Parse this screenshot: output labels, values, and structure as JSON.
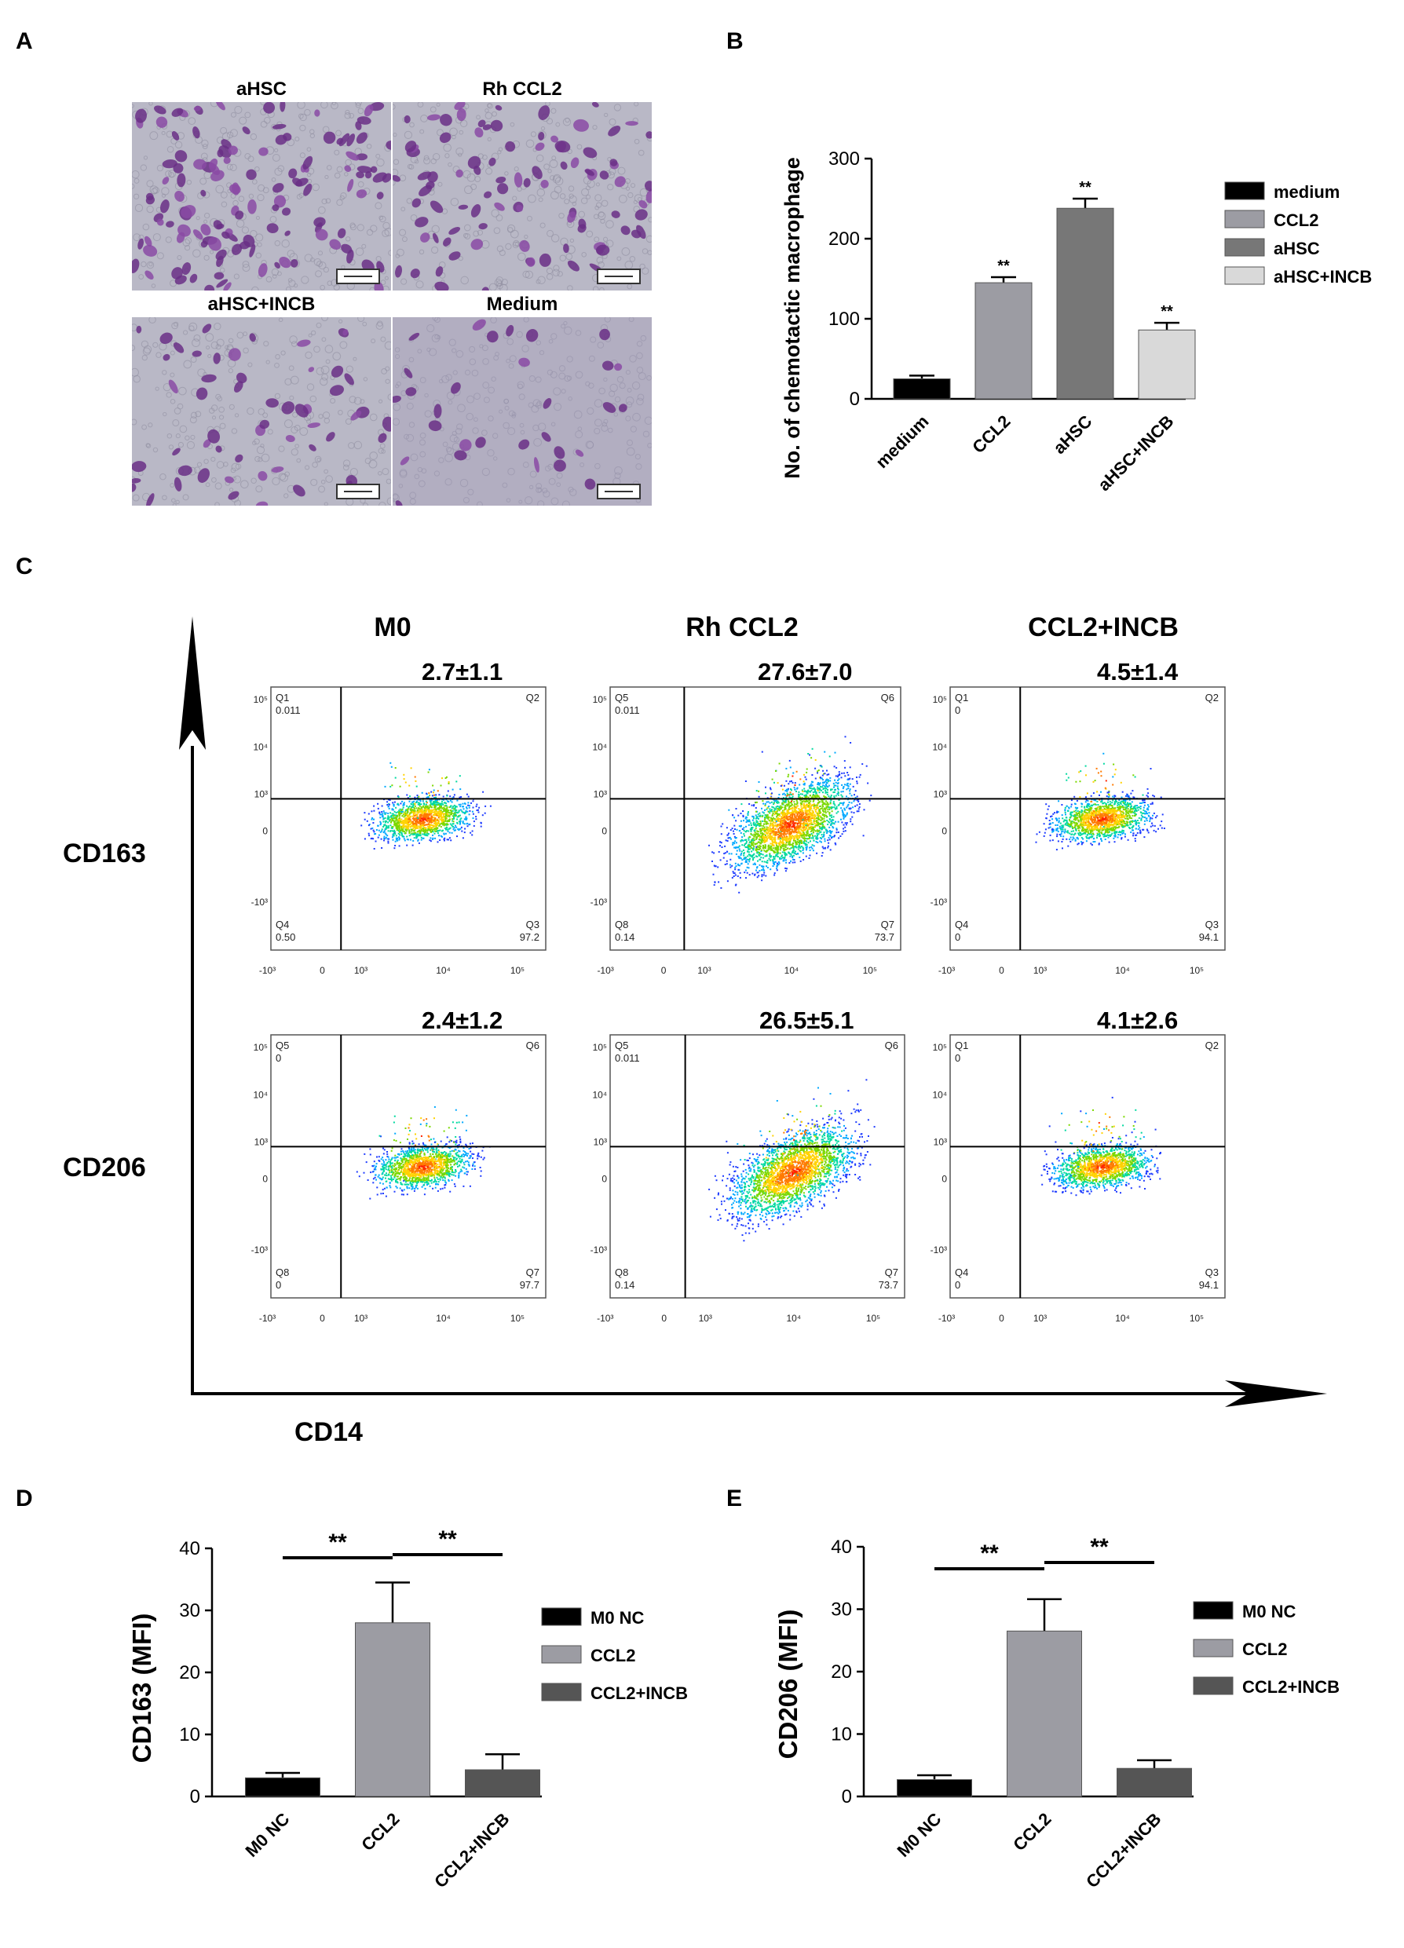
{
  "panel_labels": {
    "a": "A",
    "b": "B",
    "c": "C",
    "d": "D",
    "e": "E"
  },
  "micrographs": {
    "aHSC": "aHSC",
    "rh_ccl2": "Rh CCL2",
    "ahsc_incb": "aHSC+INCB",
    "medium": "Medium"
  },
  "chart_data": [
    {
      "id": "B",
      "type": "bar",
      "categories": [
        "medium",
        "CCL2",
        "aHSC",
        "aHSC+INCB"
      ],
      "values": [
        25,
        145,
        238,
        86
      ],
      "errors": [
        4,
        7,
        12,
        9
      ],
      "significance": [
        "",
        "**",
        "**",
        "**"
      ],
      "colors": [
        "#000000",
        "#9c9ca3",
        "#777777",
        "#d9d9d9"
      ],
      "ylabel": "No. of chemotactic macrophage",
      "ylim": [
        0,
        300
      ],
      "yticks": [
        0,
        100,
        200,
        300
      ],
      "legend": [
        "medium",
        "CCL2",
        "aHSC",
        "aHSC+INCB"
      ],
      "legend_position": "right"
    },
    {
      "id": "D",
      "type": "bar",
      "categories": [
        "M0 NC",
        "CCL2",
        "CCL2+INCB"
      ],
      "values": [
        3,
        28,
        4.3
      ],
      "errors": [
        0.8,
        6.5,
        2.5
      ],
      "colors": [
        "#000000",
        "#9c9ca3",
        "#555555"
      ],
      "ylabel": "CD163 (MFI)",
      "ylim": [
        0,
        40
      ],
      "yticks": [
        0,
        10,
        20,
        30,
        40
      ],
      "significance_brackets": [
        {
          "from": 0,
          "to": 1,
          "label": "**"
        },
        {
          "from": 1,
          "to": 2,
          "label": "**"
        }
      ],
      "legend": [
        "M0 NC",
        "CCL2",
        "CCL2+INCB"
      ],
      "legend_position": "right"
    },
    {
      "id": "E",
      "type": "bar",
      "categories": [
        "M0 NC",
        "CCL2",
        "CCL2+INCB"
      ],
      "values": [
        2.7,
        26.5,
        4.5
      ],
      "errors": [
        0.7,
        5.1,
        1.3
      ],
      "colors": [
        "#000000",
        "#9c9ca3",
        "#555555"
      ],
      "ylabel": "CD206 (MFI)",
      "ylim": [
        0,
        40
      ],
      "yticks": [
        0,
        10,
        20,
        30,
        40
      ],
      "significance_brackets": [
        {
          "from": 0,
          "to": 1,
          "label": "**"
        },
        {
          "from": 1,
          "to": 2,
          "label": "**"
        }
      ],
      "legend": [
        "M0 NC",
        "CCL2",
        "CCL2+INCB"
      ],
      "legend_position": "right"
    }
  ],
  "flow": {
    "column_titles": [
      "M0",
      "Rh CCL2",
      "CCL2+INCB"
    ],
    "row_markers": [
      "CD163",
      "CD206"
    ],
    "x_marker": "CD14",
    "percentages": [
      [
        "2.7±1.1",
        "27.6±7.0",
        "4.5±1.4"
      ],
      [
        "2.4±1.2",
        "26.5±5.1",
        "4.1±2.6"
      ]
    ],
    "plots": [
      [
        {
          "ul": [
            "Q1",
            "0.011"
          ],
          "ur": "Q2",
          "ll": [
            "Q4",
            "0.50"
          ],
          "lr": "97.2"
        },
        {
          "ul": [
            "Q5",
            "0.011"
          ],
          "ur": "Q6",
          "ll": [
            "Q8",
            "0.14"
          ],
          "lr": "73.7"
        },
        {
          "ul": [
            "Q1",
            "0"
          ],
          "ur": "Q2",
          "ll": [
            "Q4",
            "0"
          ],
          "lr": "94.1"
        }
      ],
      [
        {
          "ul": [
            "Q5",
            "0"
          ],
          "ur": "Q6",
          "ll": [
            "Q8",
            "0"
          ],
          "lr": "97.7"
        },
        {
          "ul": [
            "Q5",
            "0.011"
          ],
          "ur": "Q6",
          "ll": [
            "Q8",
            "0.14"
          ],
          "lr": "73.7"
        },
        {
          "ul": [
            "Q1",
            "0"
          ],
          "ur": "Q2",
          "ll": [
            "Q4",
            "0"
          ],
          "lr": "94.1"
        }
      ]
    ],
    "lower_right_labels": [
      [
        "Q3",
        "Q7",
        "Q3"
      ],
      [
        "Q7",
        "Q7",
        "Q3"
      ]
    ],
    "x_ticks": [
      "-10³",
      "0",
      "10³",
      "10⁴",
      "10⁵"
    ],
    "y_ticks": [
      "10⁵",
      "10⁴",
      "10³",
      "0",
      "-10³"
    ]
  }
}
